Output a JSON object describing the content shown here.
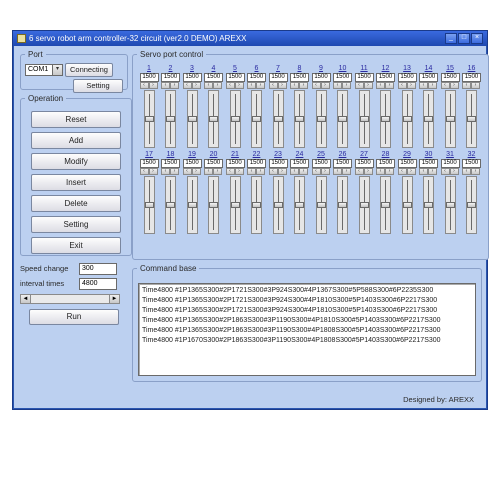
{
  "window": {
    "title": "6 servo robot arm controller-32 circuit (ver2.0 DEMO)  AREXX"
  },
  "titlebar_buttons": {
    "min": "_",
    "max": "□",
    "close": "×"
  },
  "port": {
    "legend": "Port",
    "combo_value": "COM1",
    "connect_label": "Connecting",
    "setting_label": "Setting"
  },
  "operation": {
    "legend": "Operation",
    "buttons": [
      "Reset",
      "Add",
      "Modify",
      "Insert",
      "Delete",
      "Setting",
      "Exit"
    ]
  },
  "speed": {
    "speed_label": "Speed change",
    "speed_value": "300",
    "interval_label": "interval times",
    "interval_value": "4800",
    "run_label": "Run"
  },
  "servo": {
    "legend": "Servo port control",
    "default_value": "1500",
    "row1_nums": [
      "1",
      "2",
      "3",
      "4",
      "5",
      "6",
      "7",
      "8",
      "9",
      "10",
      "11",
      "12",
      "13",
      "14",
      "15",
      "16"
    ],
    "row2_nums": [
      "17",
      "18",
      "19",
      "20",
      "21",
      "22",
      "23",
      "24",
      "25",
      "26",
      "27",
      "28",
      "29",
      "30",
      "31",
      "32"
    ]
  },
  "command": {
    "legend": "Command base",
    "lines": [
      "Time4800  #1P1365S300#2P1721S300#3P924S300#4P1367S300#5P588S300#6P2235S300",
      "Time4800  #1P1365S300#2P1721S300#3P924S300#4P1810S300#5P1403S300#6P2217S300",
      "Time4800  #1P1365S300#2P1721S300#3P924S300#4P1810S300#5P1403S300#6P2217S300",
      "Time4800  #1P1365S300#2P1863S300#3P1190S300#4P1810S300#5P1403S300#6P2217S300",
      "Time4800  #1P1365S300#2P1863S300#3P1190S300#4P1808S300#5P1403S300#6P2217S300",
      "Time4800  #1P1670S300#2P1863S300#3P1190S300#4P1808S300#5P1403S300#6P2217S300"
    ]
  },
  "footer": {
    "designed": "Designed by: AREXX"
  },
  "colors": {
    "client_bg": "#bcd0f0",
    "titlebar_grad_from": "#3a6adf",
    "titlebar_grad_to": "#1e48b0",
    "border": "#1a3a8a"
  }
}
